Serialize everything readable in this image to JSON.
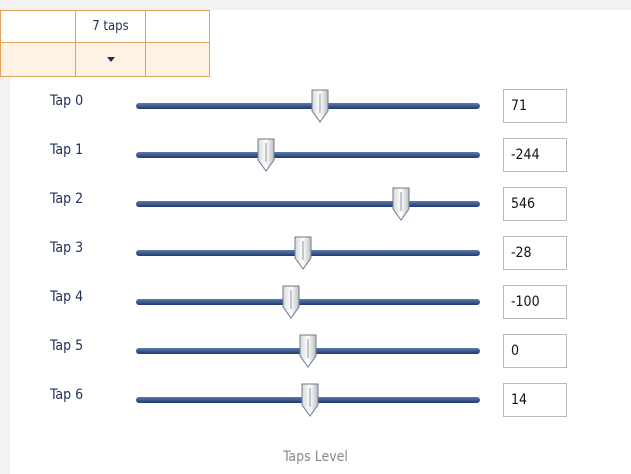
{
  "header": {
    "column": "7 taps"
  },
  "taps": [
    {
      "label": "Tap 0",
      "value": 71
    },
    {
      "label": "Tap 1",
      "value": -244
    },
    {
      "label": "Tap 2",
      "value": 546
    },
    {
      "label": "Tap 3",
      "value": -28
    },
    {
      "label": "Tap 4",
      "value": -100
    },
    {
      "label": "Tap 5",
      "value": 0
    },
    {
      "label": "Tap 6",
      "value": 14
    }
  ],
  "footer": "Taps Level"
}
